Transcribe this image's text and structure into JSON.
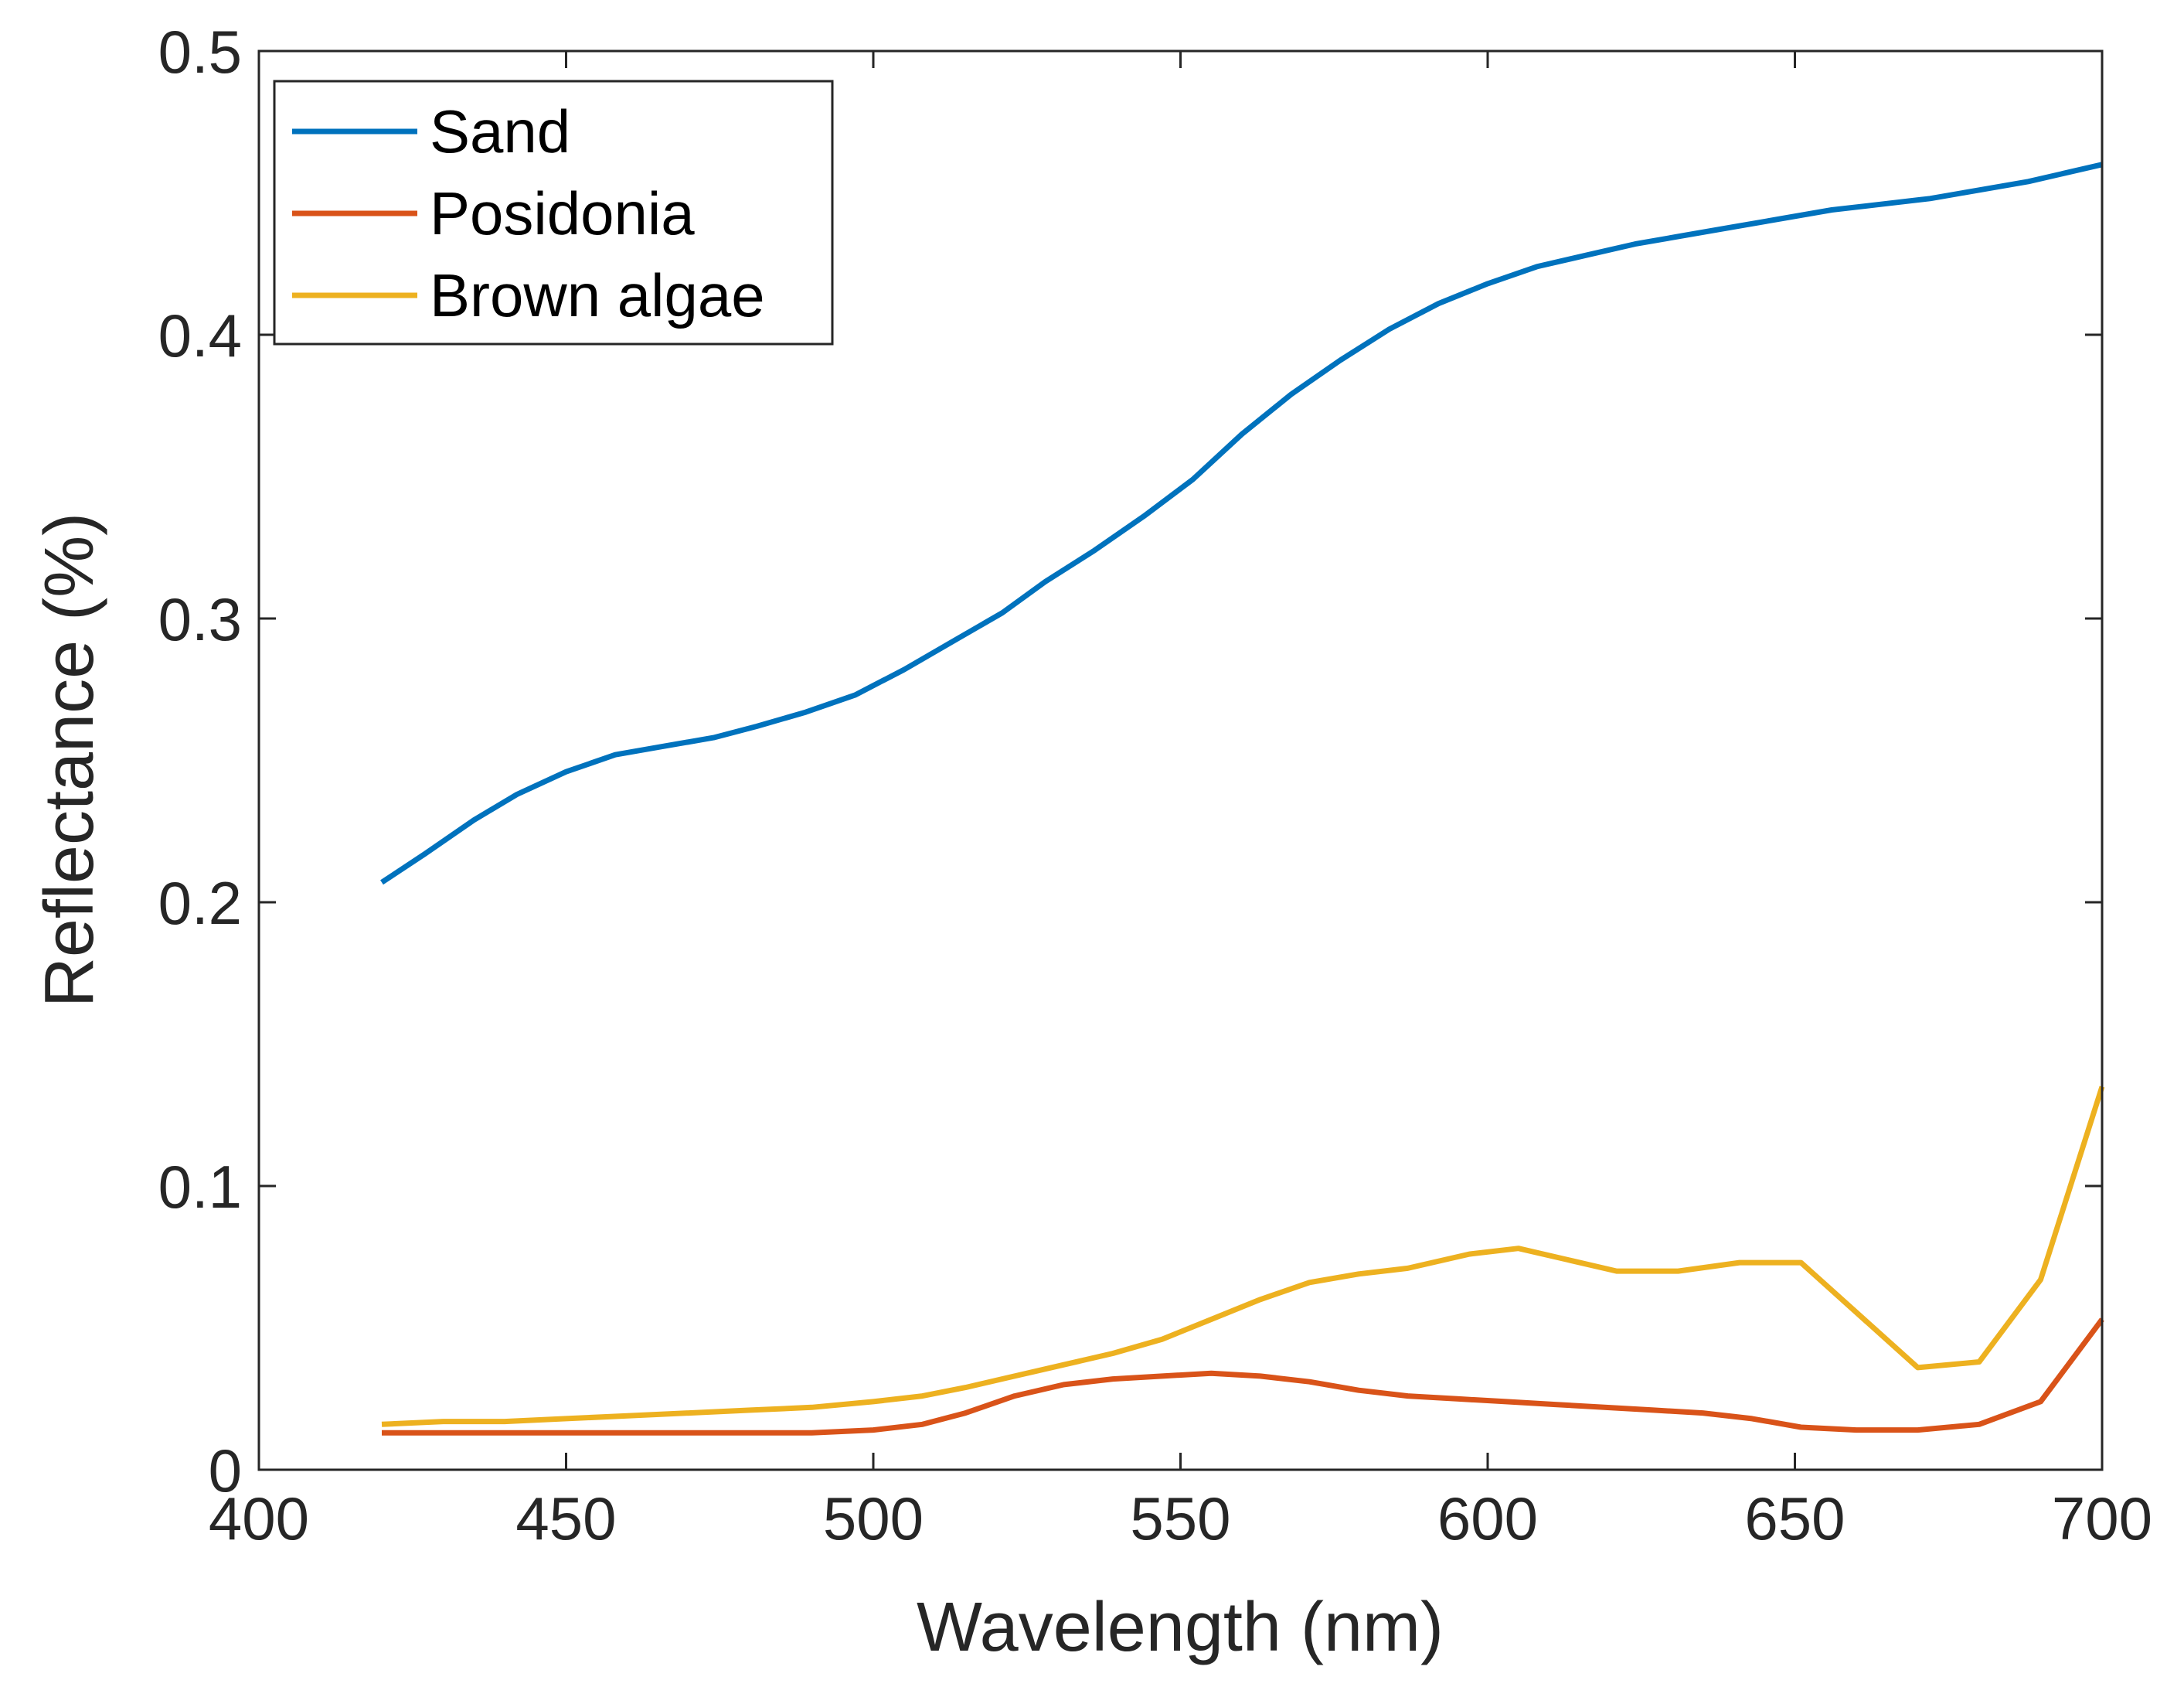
{
  "chart_data": {
    "type": "line",
    "title": "",
    "xlabel": "Wavelength (nm)",
    "ylabel": "Reflectance (%)",
    "xlim": [
      400,
      700
    ],
    "ylim": [
      0,
      0.5
    ],
    "xticks": [
      "400",
      "450",
      "500",
      "550",
      "600",
      "650",
      "700"
    ],
    "yticks": [
      "0",
      "0.1",
      "0.2",
      "0.3",
      "0.4",
      "0.5"
    ],
    "grid": false,
    "legend_position": "top-left",
    "series": [
      {
        "name": "Sand",
        "color": "#0072BD",
        "x": [
          420,
          427,
          435,
          442,
          450,
          458,
          466,
          474,
          481,
          489,
          497,
          505,
          513,
          521,
          528,
          536,
          544,
          552,
          560,
          568,
          576,
          584,
          592,
          600,
          608,
          616,
          624,
          632,
          640,
          648,
          656,
          664,
          672,
          680,
          688,
          700
        ],
        "y": [
          0.207,
          0.217,
          0.229,
          0.238,
          0.246,
          0.252,
          0.255,
          0.258,
          0.262,
          0.267,
          0.273,
          0.282,
          0.292,
          0.302,
          0.313,
          0.324,
          0.336,
          0.349,
          0.365,
          0.379,
          0.391,
          0.402,
          0.411,
          0.418,
          0.424,
          0.428,
          0.432,
          0.435,
          0.438,
          0.441,
          0.444,
          0.446,
          0.448,
          0.451,
          0.454,
          0.46
        ]
      },
      {
        "name": "Posidonia",
        "color": "#D95319",
        "x": [
          420,
          430,
          440,
          450,
          460,
          470,
          480,
          490,
          500,
          508,
          515,
          523,
          531,
          539,
          547,
          555,
          563,
          571,
          579,
          587,
          595,
          603,
          611,
          619,
          627,
          635,
          643,
          651,
          660,
          670,
          680,
          690,
          700
        ],
        "y": [
          0.013,
          0.013,
          0.013,
          0.013,
          0.013,
          0.013,
          0.013,
          0.013,
          0.014,
          0.016,
          0.02,
          0.026,
          0.03,
          0.032,
          0.033,
          0.034,
          0.033,
          0.031,
          0.028,
          0.026,
          0.025,
          0.024,
          0.023,
          0.022,
          0.021,
          0.02,
          0.018,
          0.015,
          0.014,
          0.014,
          0.016,
          0.024,
          0.053
        ]
      },
      {
        "name": "Brown algae",
        "color": "#EDB120",
        "x": [
          420,
          430,
          440,
          450,
          460,
          470,
          480,
          490,
          500,
          508,
          515,
          523,
          531,
          539,
          547,
          555,
          563,
          571,
          579,
          587,
          597,
          605,
          613,
          621,
          631,
          641,
          651,
          670,
          680,
          690,
          700
        ],
        "y": [
          0.016,
          0.017,
          0.017,
          0.018,
          0.019,
          0.02,
          0.021,
          0.022,
          0.024,
          0.026,
          0.029,
          0.033,
          0.037,
          0.041,
          0.046,
          0.053,
          0.06,
          0.066,
          0.069,
          0.071,
          0.076,
          0.078,
          0.074,
          0.07,
          0.07,
          0.073,
          0.073,
          0.036,
          0.038,
          0.067,
          0.135
        ]
      }
    ]
  }
}
